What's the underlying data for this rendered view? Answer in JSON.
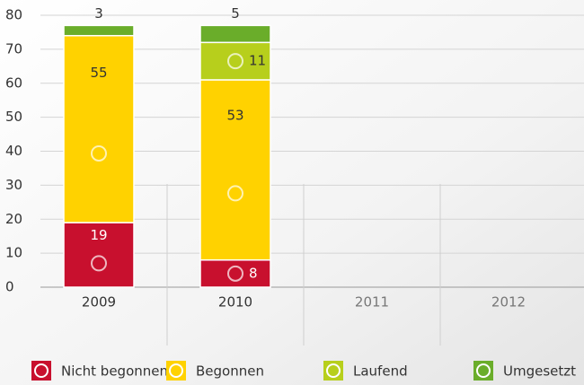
{
  "chart_data": {
    "type": "stacked_bar",
    "categories": [
      "2009",
      "2010",
      "2011",
      "2012"
    ],
    "series": [
      {
        "name": "Nicht begonnen",
        "color": "#c8102e",
        "values": [
          19,
          8,
          null,
          null
        ]
      },
      {
        "name": "Begonnen",
        "color": "#ffd200",
        "values": [
          55,
          53,
          null,
          null
        ]
      },
      {
        "name": "Laufend",
        "color": "#b7cf1c",
        "values": [
          null,
          11,
          null,
          null
        ]
      },
      {
        "name": "Umgesetzt",
        "color": "#6aad2a",
        "values": [
          3,
          5,
          null,
          null
        ]
      }
    ],
    "ylim": [
      0,
      80
    ],
    "yticks": [
      0,
      10,
      20,
      30,
      40,
      50,
      60,
      70,
      80
    ],
    "grid": true,
    "legend": "bottom"
  }
}
